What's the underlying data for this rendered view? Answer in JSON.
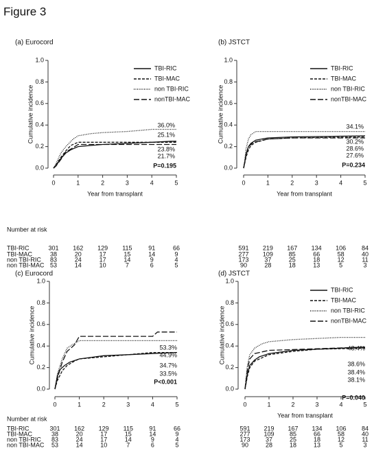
{
  "title": "Figure 3",
  "chart_data": [
    {
      "type": "line",
      "title": "(a) Eurocord",
      "y_label": "Cumulative incidence",
      "x_label": "Year from transplant",
      "xlim": [
        0,
        5
      ],
      "xticks": [
        0,
        1,
        2,
        3,
        4,
        5
      ],
      "ylim": [
        0,
        1
      ],
      "yticks": [
        {
          "value": 0,
          "label": "0.0"
        },
        {
          "value": 0.2,
          "label": "0.2"
        },
        {
          "value": 0.4,
          "label": "0.4"
        },
        {
          "value": 0.6,
          "label": "0.6"
        },
        {
          "value": 0.8,
          "label": "0.8"
        },
        {
          "value": 1,
          "label": "1.0"
        }
      ],
      "series": [
        {
          "name": "TBI-RIC",
          "color": "#111",
          "dash": "solid",
          "x": [
            0,
            0.05,
            0.15,
            0.3,
            0.5,
            0.7,
            1,
            1.5,
            2,
            3,
            4,
            4.8,
            5
          ],
          "values": [
            0,
            0.01,
            0.04,
            0.09,
            0.14,
            0.17,
            0.2,
            0.21,
            0.22,
            0.23,
            0.24,
            0.25,
            0.25
          ]
        },
        {
          "name": "TBI-MAC",
          "color": "#111",
          "dash": "short",
          "x": [
            0,
            0.1,
            0.3,
            0.5,
            0.7,
            1,
            2,
            5
          ],
          "values": [
            0,
            0.03,
            0.1,
            0.16,
            0.21,
            0.24,
            0.24,
            0.24
          ]
        },
        {
          "name": "non TBI-RIC",
          "color": "#111",
          "dash": "dotted",
          "x": [
            0,
            0.1,
            0.3,
            0.5,
            0.8,
            1,
            1.5,
            2,
            3,
            3.5,
            4,
            5
          ],
          "values": [
            0,
            0.04,
            0.14,
            0.2,
            0.27,
            0.3,
            0.32,
            0.33,
            0.34,
            0.35,
            0.36,
            0.36
          ]
        },
        {
          "name": "nonTBI-MAC",
          "color": "#111",
          "dash": "long",
          "x": [
            0,
            0.1,
            0.3,
            0.5,
            0.8,
            1,
            5
          ],
          "values": [
            0,
            0.02,
            0.08,
            0.15,
            0.19,
            0.22,
            0.22
          ]
        }
      ],
      "annotations": [
        "36.0%",
        "25.1%",
        "23.8%",
        "21.7%"
      ],
      "p_value": "P=0.195",
      "risk_title": "Number at risk",
      "risk_labels": [
        "TBI-RIC",
        "TBI-MAC",
        "non TBI-RIC",
        "non TBI-MAC"
      ],
      "risk": [
        [
          301,
          162,
          129,
          115,
          91,
          66
        ],
        [
          38,
          20,
          17,
          15,
          14,
          9
        ],
        [
          83,
          24,
          17,
          14,
          9,
          4
        ],
        [
          53,
          14,
          10,
          7,
          6,
          5
        ]
      ]
    },
    {
      "type": "line",
      "title": "(b) JSTCT",
      "y_label": "Cumulative incidence",
      "x_label": "Year from transplant",
      "xlim": [
        0,
        5
      ],
      "xticks": [
        0,
        1,
        2,
        3,
        4,
        5
      ],
      "ylim": [
        0,
        1
      ],
      "yticks": [
        {
          "value": 0,
          "label": "0.0"
        },
        {
          "value": 0.2,
          "label": "0.2"
        },
        {
          "value": 0.4,
          "label": "0.4"
        },
        {
          "value": 0.6,
          "label": "0.6"
        },
        {
          "value": 0.8,
          "label": "0.8"
        },
        {
          "value": 1,
          "label": "1.0"
        }
      ],
      "series": [
        {
          "name": "TBI-RIC",
          "color": "#111",
          "dash": "solid",
          "x": [
            0,
            0.05,
            0.1,
            0.2,
            0.3,
            0.5,
            1,
            2,
            5
          ],
          "values": [
            0,
            0.06,
            0.13,
            0.2,
            0.23,
            0.26,
            0.28,
            0.29,
            0.3
          ]
        },
        {
          "name": "TBI-MAC",
          "color": "#111",
          "dash": "short",
          "x": [
            0,
            0.05,
            0.1,
            0.2,
            0.3,
            0.5,
            1,
            2,
            5
          ],
          "values": [
            0,
            0.05,
            0.1,
            0.17,
            0.21,
            0.24,
            0.27,
            0.28,
            0.29
          ]
        },
        {
          "name": "non TBI-RIC",
          "color": "#111",
          "dash": "dotted",
          "x": [
            0,
            0.05,
            0.1,
            0.2,
            0.3,
            0.5,
            5
          ],
          "values": [
            0,
            0.08,
            0.18,
            0.27,
            0.31,
            0.34,
            0.34
          ]
        },
        {
          "name": "nonTBI-MAC",
          "color": "#111",
          "dash": "long",
          "x": [
            0,
            0.1,
            0.2,
            0.4,
            1,
            2,
            5
          ],
          "values": [
            0,
            0.12,
            0.2,
            0.24,
            0.27,
            0.28,
            0.28
          ]
        }
      ],
      "annotations": [
        "34.1%",
        "30.2%",
        "28.6%",
        "27.6%"
      ],
      "p_value": "P=0.234",
      "risk": [
        [
          591,
          219,
          167,
          134,
          106,
          84
        ],
        [
          277,
          109,
          85,
          66,
          58,
          40
        ],
        [
          173,
          37,
          25,
          18,
          12,
          11
        ],
        [
          90,
          28,
          18,
          13,
          5,
          3
        ]
      ]
    },
    {
      "type": "line",
      "title": "(c) Eurocord",
      "y_label": "Cumulative incidence",
      "xlim": [
        0,
        5
      ],
      "xticks": [
        0,
        1,
        2,
        3,
        4,
        5
      ],
      "ylim": [
        0,
        1
      ],
      "yticks": [
        {
          "value": 0,
          "label": "0.0"
        },
        {
          "value": 0.2,
          "label": "0.2"
        },
        {
          "value": 0.4,
          "label": "0.4"
        },
        {
          "value": 0.6,
          "label": "0.6"
        },
        {
          "value": 0.8,
          "label": "0.8"
        },
        {
          "value": 1,
          "label": "1.0"
        }
      ],
      "series": [
        {
          "color": "#111",
          "dash": "solid",
          "x": [
            0,
            0.05,
            0.1,
            0.2,
            0.4,
            0.6,
            1,
            2,
            3,
            4,
            5
          ],
          "values": [
            0,
            0.06,
            0.12,
            0.18,
            0.22,
            0.25,
            0.28,
            0.31,
            0.32,
            0.33,
            0.34
          ]
        },
        {
          "color": "#111",
          "dash": "short",
          "x": [
            0,
            0.1,
            0.3,
            0.5,
            0.8,
            1,
            2,
            3,
            4,
            5
          ],
          "values": [
            0,
            0.08,
            0.17,
            0.22,
            0.26,
            0.28,
            0.3,
            0.32,
            0.34,
            0.34
          ]
        },
        {
          "color": "#111",
          "dash": "dotted",
          "x": [
            0,
            0.1,
            0.3,
            0.5,
            0.7,
            1,
            5
          ],
          "values": [
            0,
            0.14,
            0.28,
            0.38,
            0.41,
            0.45,
            0.45
          ]
        },
        {
          "color": "#111",
          "dash": "long",
          "x": [
            0,
            0.1,
            0.3,
            0.5,
            0.8,
            1,
            4,
            4.2,
            5
          ],
          "values": [
            0,
            0.1,
            0.25,
            0.35,
            0.41,
            0.49,
            0.49,
            0.53,
            0.53
          ]
        }
      ],
      "annotations": [
        "53.3%",
        "44.9%",
        "34.7%",
        "33.5%"
      ],
      "p_value": "P<0.001",
      "risk_title": "Number at risk",
      "risk_labels": [
        "TBI-RIC",
        "TBI-MAC",
        "non TBI-RIC",
        "non TBI-MAC"
      ],
      "risk": [
        [
          301,
          162,
          129,
          115,
          91,
          66
        ],
        [
          38,
          20,
          17,
          15,
          14,
          9
        ],
        [
          83,
          24,
          17,
          14,
          9,
          4
        ],
        [
          53,
          14,
          10,
          7,
          6,
          5
        ]
      ]
    },
    {
      "type": "line",
      "title": "(d) JSTCT",
      "y_label": "Cumulative incidence",
      "x_label": "Year from transplant",
      "xlim": [
        0,
        5
      ],
      "xticks": [
        0,
        1,
        2,
        3,
        4,
        5
      ],
      "ylim": [
        0,
        1
      ],
      "yticks": [
        {
          "value": 0,
          "label": "0.0"
        },
        {
          "value": 0.2,
          "label": "0.2"
        },
        {
          "value": 0.4,
          "label": "0.4"
        },
        {
          "value": 0.6,
          "label": "0.6"
        },
        {
          "value": 0.8,
          "label": "0.8"
        },
        {
          "value": 1,
          "label": "1.0"
        }
      ],
      "series": [
        {
          "name": "TBI-RIC",
          "color": "#111",
          "dash": "solid",
          "x": [
            0,
            0.05,
            0.1,
            0.2,
            0.4,
            0.6,
            1,
            2,
            3,
            4,
            5
          ],
          "values": [
            0,
            0.07,
            0.14,
            0.22,
            0.27,
            0.3,
            0.33,
            0.36,
            0.37,
            0.38,
            0.39
          ]
        },
        {
          "name": "TBI-MAC",
          "color": "#111",
          "dash": "short",
          "x": [
            0,
            0.05,
            0.1,
            0.2,
            0.4,
            1,
            2,
            3,
            5
          ],
          "values": [
            0,
            0.06,
            0.12,
            0.2,
            0.26,
            0.32,
            0.35,
            0.37,
            0.38
          ]
        },
        {
          "name": "non TBI-RIC",
          "color": "#111",
          "dash": "dotted",
          "x": [
            0,
            0.05,
            0.1,
            0.2,
            0.4,
            0.7,
            1,
            2,
            3,
            4,
            5
          ],
          "values": [
            0,
            0.12,
            0.22,
            0.32,
            0.38,
            0.42,
            0.44,
            0.46,
            0.47,
            0.48,
            0.48
          ]
        },
        {
          "name": "nonTBI-MAC",
          "color": "#111",
          "dash": "long",
          "x": [
            0,
            0.1,
            0.2,
            0.4,
            1,
            5
          ],
          "values": [
            0,
            0.18,
            0.28,
            0.33,
            0.36,
            0.39
          ]
        }
      ],
      "annotations": [
        "48.4%",
        "38.6%",
        "38.4%",
        "38.1%"
      ],
      "p_value": "P=0.040",
      "risk": [
        [
          591,
          219,
          167,
          134,
          106,
          84
        ],
        [
          277,
          109,
          85,
          66,
          58,
          40
        ],
        [
          173,
          37,
          25,
          18,
          12,
          11
        ],
        [
          90,
          28,
          18,
          13,
          5,
          3
        ]
      ]
    }
  ]
}
